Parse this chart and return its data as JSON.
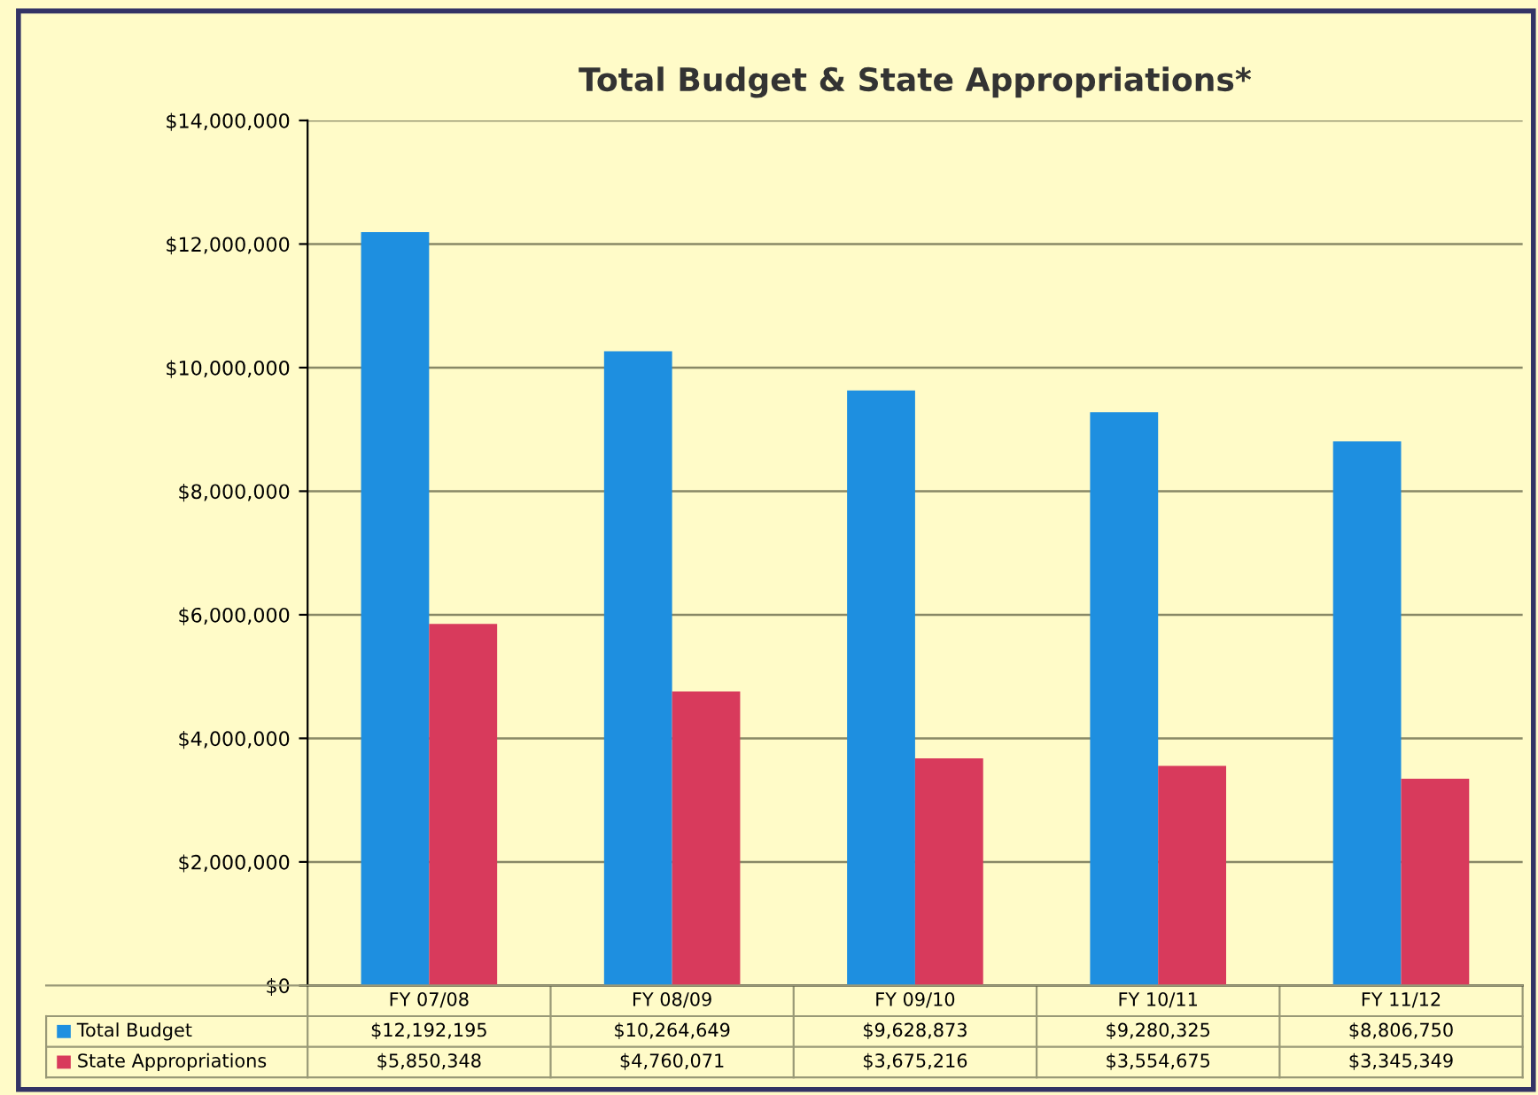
{
  "chart_data": {
    "type": "bar",
    "title": "Total Budget & State Appropriations*",
    "categories": [
      "FY 07/08",
      "FY 08/09",
      "FY 09/10",
      "FY 10/11",
      "FY 11/12"
    ],
    "series": [
      {
        "name": "Total Budget",
        "color": "#1e8fe0",
        "values": [
          12192195,
          10264649,
          9628873,
          9280325,
          8806750
        ],
        "value_labels": [
          "$12,192,195",
          "$10,264,649",
          "$9,628,873",
          "$9,280,325",
          "$8,806,750"
        ]
      },
      {
        "name": "State Appropriations",
        "color": "#d83a5c",
        "values": [
          5850348,
          4760071,
          3675216,
          3554675,
          3345349
        ],
        "value_labels": [
          "$5,850,348",
          "$4,760,071",
          "$3,675,216",
          "$3,554,675",
          "$3,345,349"
        ]
      }
    ],
    "ylim": [
      0,
      14000000
    ],
    "yticks": [
      {
        "value": 0,
        "label": "$0"
      },
      {
        "value": 2000000,
        "label": "$2,000,000"
      },
      {
        "value": 4000000,
        "label": "$4,000,000"
      },
      {
        "value": 6000000,
        "label": "$6,000,000"
      },
      {
        "value": 8000000,
        "label": "$8,000,000"
      },
      {
        "value": 10000000,
        "label": "$10,000,000"
      },
      {
        "value": 12000000,
        "label": "$12,000,000"
      },
      {
        "value": 14000000,
        "label": "$14,000,000"
      }
    ],
    "grid": "y",
    "legend": "bottom left"
  }
}
